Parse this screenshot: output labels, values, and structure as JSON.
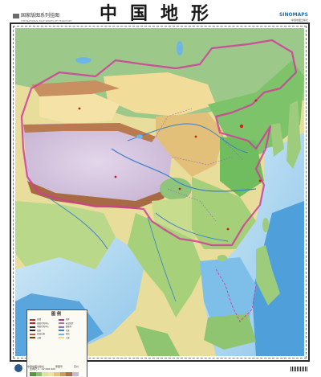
{
  "map": {
    "title": "中国地形",
    "series_label": "国家版图系列挂图",
    "series_sub": "THE NATIONAL MAP SERIES OF TERRITORY",
    "brand": "SINOMAPS",
    "brand_sub": "中国地图出版社",
    "legend": {
      "title": "图例",
      "items": [
        {
          "label": "首都",
          "color": "#d42020"
        },
        {
          "label": "国界",
          "color": "#c0308a"
        },
        {
          "label": "省级行政中心",
          "color": "#c02020"
        },
        {
          "label": "未定国界",
          "color": "#c070a0"
        },
        {
          "label": "地级行政中心",
          "color": "#333333"
        },
        {
          "label": "省级界",
          "color": "#9a6ab0"
        },
        {
          "label": "铁路",
          "color": "#222222"
        },
        {
          "label": "河流",
          "color": "#3a7fc8"
        },
        {
          "label": "高速公路",
          "color": "#e05030"
        },
        {
          "label": "湖泊",
          "color": "#6fb6e6"
        },
        {
          "label": "山峰",
          "color": "#7a3a10"
        },
        {
          "label": "沙漠",
          "color": "#f0d890"
        }
      ],
      "scale": "比例尺 1 : 12 000 000",
      "ramp": [
        "#4f9a3e",
        "#8cc06a",
        "#d8e6a2",
        "#f2e4a0",
        "#e8c27a",
        "#d29a5a",
        "#b07048",
        "#c8b8d8",
        "#ffffff"
      ]
    },
    "colors": {
      "ocean": "#bfe0f2",
      "deep_ocean": "#3a8fd0",
      "plateau": "#d8c8e0",
      "plain": "#7cc36a",
      "hill": "#e6d98a",
      "desert": "#f3dd9a",
      "mountain": "#c0845a",
      "border": "#d23c9a"
    },
    "footer": {
      "publisher": "中国地图出版社",
      "review": "审图号",
      "edition": "定价"
    }
  }
}
